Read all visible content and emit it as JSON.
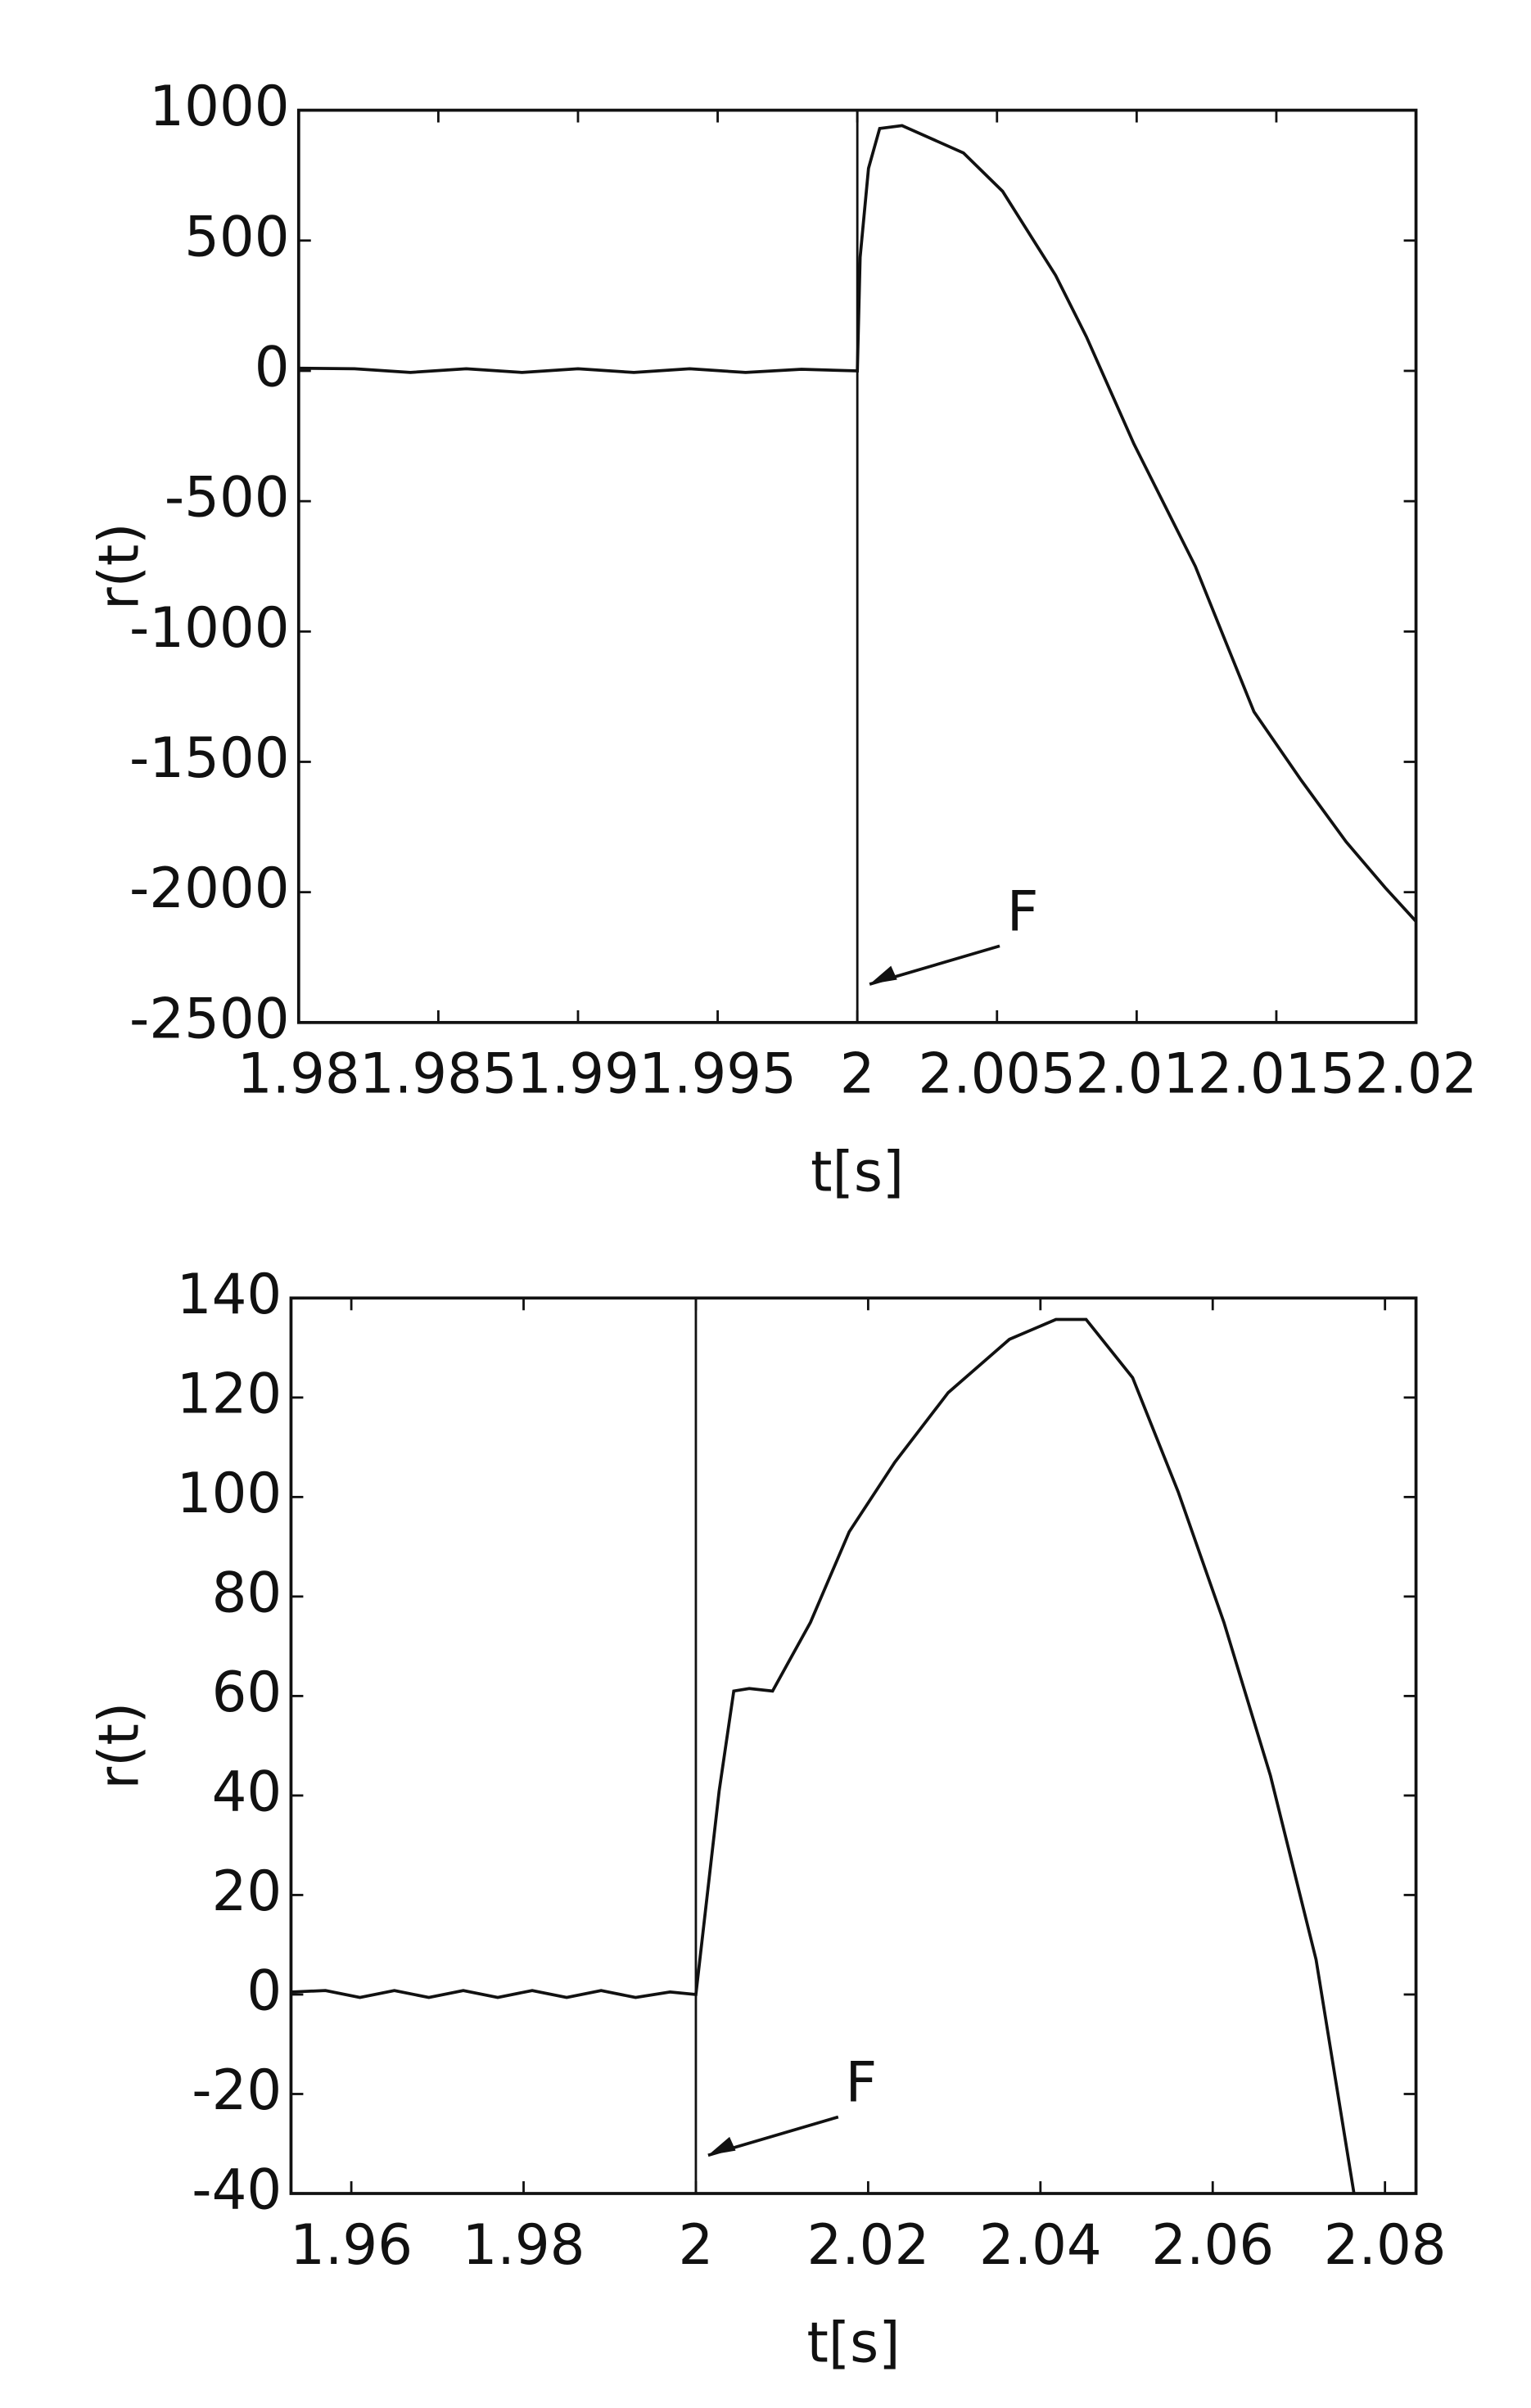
{
  "chart_data": [
    {
      "type": "line",
      "x_label": "t[s]",
      "y_label": "r(t)",
      "annotation": "F",
      "vline": 2,
      "xlim": [
        1.98,
        2.02
      ],
      "xticks": [
        1.98,
        1.985,
        1.99,
        1.995,
        2,
        2.005,
        2.01,
        2.015,
        2.02
      ],
      "ylim": [
        -2500,
        1000
      ],
      "yticks": [
        1000,
        500,
        0,
        -500,
        -1000,
        -1500,
        -2000,
        -2500
      ],
      "series": [
        {
          "color": "#111111",
          "x": [
            1.98,
            1.982,
            1.984,
            1.986,
            1.988,
            1.99,
            1.992,
            1.994,
            1.996,
            1.998,
            2.0,
            2.0001,
            2.0004,
            2.0008,
            2.0016,
            2.0038,
            2.0052,
            2.0071,
            2.0082,
            2.0099,
            2.0121,
            2.0132,
            2.0142,
            2.0159,
            2.0175,
            2.0189,
            2.02
          ],
          "values": [
            10,
            8,
            -6,
            8,
            -6,
            8,
            -6,
            8,
            -6,
            6,
            0,
            436,
            777,
            930,
            941,
            836,
            689,
            366,
            131,
            -280,
            -750,
            -1043,
            -1308,
            -1572,
            -1807,
            -1983,
            -2112
          ]
        }
      ]
    },
    {
      "type": "line",
      "x_label": "t[s]",
      "y_label": "r(t)",
      "annotation": "F",
      "vline": 2,
      "xlim": [
        1.953,
        2.0836
      ],
      "xticks": [
        1.96,
        1.98,
        2,
        2.02,
        2.04,
        2.06,
        2.08
      ],
      "ylim": [
        -40,
        140
      ],
      "yticks": [
        140,
        120,
        100,
        80,
        60,
        40,
        20,
        0,
        -20,
        -40
      ],
      "series": [
        {
          "color": "#111111",
          "x": [
            1.953,
            1.957,
            1.961,
            1.965,
            1.969,
            1.973,
            1.977,
            1.981,
            1.985,
            1.989,
            1.993,
            1.997,
            2.0,
            2.0027,
            2.0044,
            2.0062,
            2.0089,
            2.0133,
            2.0178,
            2.0231,
            2.0293,
            2.0364,
            2.0418,
            2.0453,
            2.0507,
            2.056,
            2.0613,
            2.0667,
            2.072,
            2.0764
          ],
          "values": [
            0.5,
            0.8,
            -0.6,
            0.8,
            -0.6,
            0.8,
            -0.6,
            0.8,
            -0.6,
            0.8,
            -0.6,
            0.5,
            0,
            40.9,
            61,
            61.5,
            61,
            74.8,
            93,
            107,
            121,
            131.7,
            135.7,
            135.7,
            124,
            101,
            74.8,
            44,
            7,
            -40
          ]
        }
      ]
    }
  ]
}
